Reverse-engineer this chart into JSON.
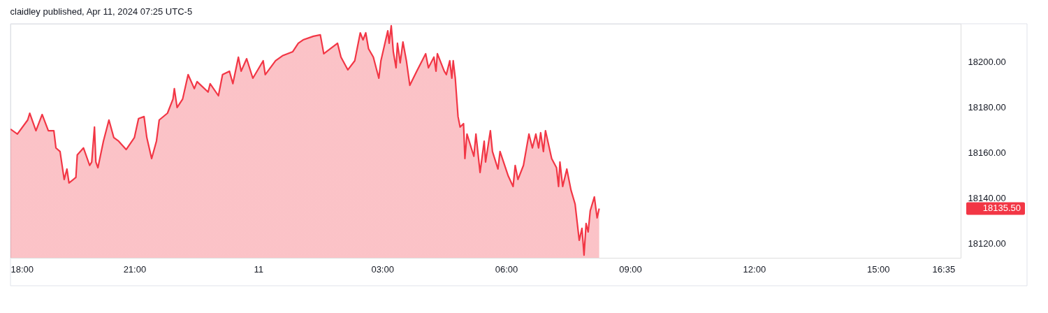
{
  "chart_data": {
    "type": "area",
    "title": "claidley published, Apr 11, 2024 07:25 UTC-5",
    "x": [
      "2024-04-10T18:00",
      "2024-04-10T18:10",
      "2024-04-10T18:25",
      "2024-04-10T18:28",
      "2024-04-10T18:37",
      "2024-04-10T18:46",
      "2024-04-10T18:55",
      "2024-04-10T19:03",
      "2024-04-10T19:06",
      "2024-04-10T19:12",
      "2024-04-10T19:18",
      "2024-04-10T19:22",
      "2024-04-10T19:25",
      "2024-04-10T19:35",
      "2024-04-10T19:37",
      "2024-04-10T19:46",
      "2024-04-10T19:55",
      "2024-04-10T19:58",
      "2024-04-10T20:02",
      "2024-04-10T20:04",
      "2024-04-10T20:07",
      "2024-04-10T20:15",
      "2024-04-10T20:23",
      "2024-04-10T20:30",
      "2024-04-10T20:37",
      "2024-04-10T20:48",
      "2024-04-10T21:00",
      "2024-04-10T21:06",
      "2024-04-10T21:14",
      "2024-04-10T21:18",
      "2024-04-10T21:25",
      "2024-04-10T21:32",
      "2024-04-10T21:36",
      "2024-04-10T21:48",
      "2024-04-10T21:56",
      "2024-04-10T21:58",
      "2024-04-10T22:02",
      "2024-04-10T22:10",
      "2024-04-10T22:18",
      "2024-04-10T22:27",
      "2024-04-10T22:31",
      "2024-04-10T22:47",
      "2024-04-10T22:50",
      "2024-04-10T23:02",
      "2024-04-10T23:08",
      "2024-04-10T23:18",
      "2024-04-10T23:23",
      "2024-04-10T23:31",
      "2024-04-10T23:35",
      "2024-04-10T23:43",
      "2024-04-10T23:52",
      "2024-04-11T00:07",
      "2024-04-11T00:10",
      "2024-04-11T00:25",
      "2024-04-11T00:35",
      "2024-04-11T00:50",
      "2024-04-11T00:58",
      "2024-04-11T01:05",
      "2024-04-11T01:20",
      "2024-04-11T01:30",
      "2024-04-11T01:35",
      "2024-04-11T01:55",
      "2024-04-11T02:00",
      "2024-04-11T02:10",
      "2024-04-11T02:20",
      "2024-04-11T02:28",
      "2024-04-11T02:32",
      "2024-04-11T02:36",
      "2024-04-11T02:40",
      "2024-04-11T02:47",
      "2024-04-11T02:55",
      "2024-04-11T02:58",
      "2024-04-11T03:08",
      "2024-04-11T03:10",
      "2024-04-11T03:13",
      "2024-04-11T03:16",
      "2024-04-11T03:20",
      "2024-04-11T03:22",
      "2024-04-11T03:26",
      "2024-04-11T03:30",
      "2024-04-11T03:35",
      "2024-04-11T03:40",
      "2024-04-11T03:50",
      "2024-04-11T04:03",
      "2024-04-11T04:07",
      "2024-04-11T04:15",
      "2024-04-11T04:18",
      "2024-04-11T04:20",
      "2024-04-11T04:30",
      "2024-04-11T04:33",
      "2024-04-11T04:38",
      "2024-04-11T04:41",
      "2024-04-11T04:43",
      "2024-04-11T04:46",
      "2024-04-11T04:50",
      "2024-04-11T04:53",
      "2024-04-11T04:58",
      "2024-04-11T05:00",
      "2024-04-11T05:03",
      "2024-04-11T05:13",
      "2024-04-11T05:16",
      "2024-04-11T05:22",
      "2024-04-11T05:28",
      "2024-04-11T05:30",
      "2024-04-11T05:37",
      "2024-04-11T05:40",
      "2024-04-11T05:48",
      "2024-04-11T05:51",
      "2024-04-11T06:03",
      "2024-04-11T06:10",
      "2024-04-11T06:13",
      "2024-04-11T06:17",
      "2024-04-11T06:25",
      "2024-04-11T06:33",
      "2024-04-11T06:38",
      "2024-04-11T06:43",
      "2024-04-11T06:47",
      "2024-04-11T06:50",
      "2024-04-11T06:54",
      "2024-04-11T06:57",
      "2024-04-11T07:06",
      "2024-04-11T07:13",
      "2024-04-11T07:16",
      "2024-04-11T07:18",
      "2024-04-11T07:22",
      "2024-04-11T07:28",
      "2024-04-11T07:34",
      "2024-04-11T07:40",
      "2024-04-11T07:46",
      "2024-04-11T07:50",
      "2024-04-11T07:53",
      "2024-04-11T07:56",
      "2024-04-11T07:59",
      "2024-04-11T08:02",
      "2024-04-11T08:08",
      "2024-04-11T08:12",
      "2024-04-11T08:15"
    ],
    "series": [
      {
        "color": "#f23645",
        "values": [
          18170.5,
          18168.3,
          18174.5,
          18177.5,
          18169.8,
          18176.9,
          18169.8,
          18169.8,
          18162.2,
          18160.6,
          18148.3,
          18152.9,
          18146.8,
          18149.2,
          18159.1,
          18162.2,
          18154.5,
          18156.0,
          18171.4,
          18156.0,
          18153.5,
          18165.2,
          18174.5,
          18166.8,
          18165.2,
          18161.5,
          18166.8,
          18175.1,
          18176.0,
          18166.8,
          18157.5,
          18165.2,
          18174.5,
          18177.5,
          18183.7,
          18188.3,
          18180.0,
          18183.7,
          18194.5,
          18188.3,
          18191.4,
          18186.8,
          18190.5,
          18185.2,
          18194.5,
          18196.0,
          18190.5,
          18202.2,
          18196.0,
          18201.5,
          18192.9,
          18200.6,
          18194.5,
          18200.6,
          18202.8,
          18204.6,
          18208.3,
          18209.8,
          18211.4,
          18212.0,
          18203.7,
          18208.3,
          18202.2,
          18196.6,
          18200.6,
          18212.9,
          18209.8,
          18212.9,
          18205.9,
          18202.2,
          18192.9,
          18200.6,
          18213.8,
          18208.3,
          18216.0,
          18204.6,
          18197.5,
          18208.3,
          18199.7,
          18208.9,
          18200.6,
          18189.8,
          18196.0,
          18203.7,
          18197.5,
          18202.2,
          18196.0,
          18203.7,
          18196.0,
          18194.5,
          18200.6,
          18192.9,
          18200.6,
          18192.9,
          18176.0,
          18171.4,
          18172.9,
          18157.5,
          18168.3,
          18158.5,
          18168.3,
          18151.4,
          18165.2,
          18156.0,
          18169.8,
          18160.6,
          18152.9,
          18160.6,
          18149.8,
          18145.2,
          18154.5,
          18148.3,
          18154.5,
          18168.3,
          18162.2,
          18168.3,
          18162.2,
          18168.9,
          18160.6,
          18169.8,
          18157.5,
          18153.5,
          18145.2,
          18156.0,
          18145.2,
          18152.9,
          18143.7,
          18137.5,
          18121.5,
          18126.8,
          18115.0,
          18128.9,
          18125.2,
          18134.5,
          18140.6,
          18131.4,
          18135.5
        ]
      }
    ],
    "xlim": [
      "2024-04-10T18:00",
      "2024-04-11T17:00"
    ],
    "xticks": [
      {
        "value": "2024-04-10T18:00",
        "label": "18:00"
      },
      {
        "value": "2024-04-10T21:00",
        "label": "21:00"
      },
      {
        "value": "2024-04-11T00:00",
        "label": "11"
      },
      {
        "value": "2024-04-11T03:00",
        "label": "03:00"
      },
      {
        "value": "2024-04-11T06:00",
        "label": "06:00"
      },
      {
        "value": "2024-04-11T09:00",
        "label": "09:00"
      },
      {
        "value": "2024-04-11T12:00",
        "label": "12:00"
      },
      {
        "value": "2024-04-11T15:00",
        "label": "15:00"
      },
      {
        "value": "2024-04-11T16:35",
        "label": "16:35"
      }
    ],
    "ylim": [
      18113.8,
      18216.9
    ],
    "yticks": [
      {
        "value": 18120,
        "label": "18120.00"
      },
      {
        "value": 18140,
        "label": "18140.00"
      },
      {
        "value": 18160,
        "label": "18160.00"
      },
      {
        "value": 18180,
        "label": "18180.00"
      },
      {
        "value": 18200,
        "label": "18200.00"
      }
    ],
    "annotations": [
      "18135.50"
    ],
    "grid": false
  }
}
